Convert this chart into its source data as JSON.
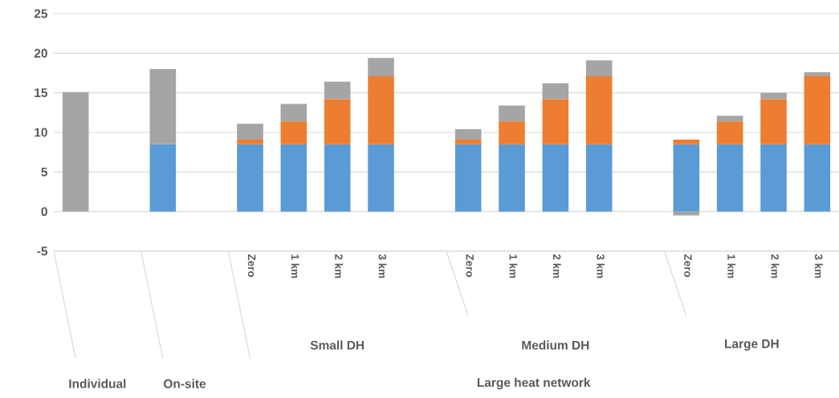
{
  "chart_data": {
    "type": "bar",
    "stacked": true,
    "categories": [
      null,
      null,
      null,
      null,
      "Zero",
      "1 km",
      "2 km",
      "3 km",
      null,
      "Zero",
      "1 km",
      "2 km",
      "3 km",
      null,
      "Zero",
      "1 km",
      "2 km",
      "3 km"
    ],
    "series": [
      {
        "color": "#5b9bd5",
        "values": [
          null,
          null,
          8.5,
          null,
          8.5,
          8.5,
          8.5,
          8.5,
          null,
          8.5,
          8.5,
          8.5,
          8.5,
          null,
          8.5,
          8.5,
          8.5,
          8.5
        ]
      },
      {
        "color": "#ed7d31",
        "values": [
          null,
          null,
          null,
          null,
          0.6,
          2.9,
          5.7,
          8.6,
          null,
          0.6,
          2.9,
          5.7,
          8.6,
          null,
          0.6,
          2.9,
          5.7,
          8.6
        ]
      },
      {
        "color": "#a5a5a5",
        "values": [
          15.1,
          null,
          9.5,
          null,
          2.0,
          2.2,
          2.2,
          2.3,
          null,
          1.3,
          2.0,
          2.0,
          2.0,
          null,
          -0.5,
          0.7,
          0.8,
          0.5
        ]
      }
    ],
    "ylim": [
      -5,
      25
    ],
    "yticks": [
      -5,
      0,
      5,
      10,
      15,
      20,
      25
    ],
    "grid": "y",
    "annotations": [
      "Individual",
      "On-site",
      "Small DH",
      "Medium DH",
      "Large DH",
      "Large heat network"
    ]
  }
}
